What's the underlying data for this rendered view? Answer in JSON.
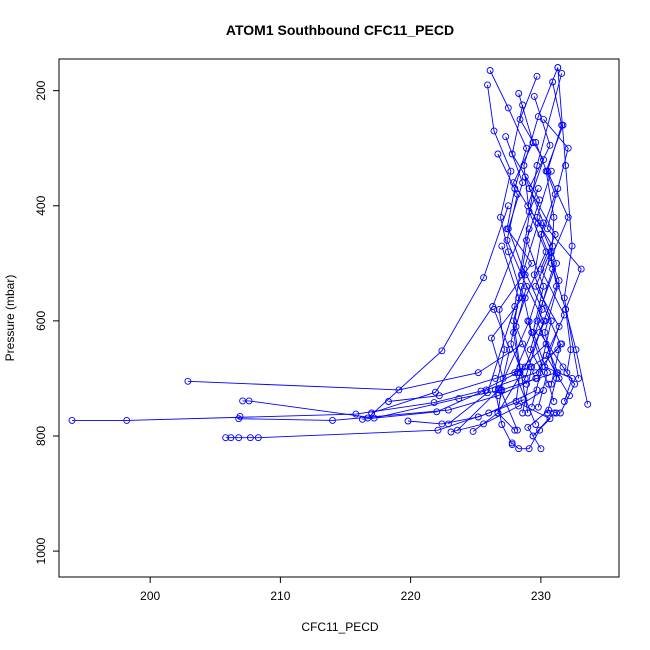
{
  "chart_data": {
    "type": "scatter",
    "title": "ATOM1 Southbound CFC11_PECD",
    "xlabel": "CFC11_PECD",
    "ylabel": "Pressure (mbar)",
    "xlim": [
      193.0,
      236.0
    ],
    "ylim": [
      1045,
      145
    ],
    "y_reversed": true,
    "x_ticks": [
      200,
      210,
      220,
      230
    ],
    "y_ticks": [
      200,
      400,
      600,
      800,
      1000
    ],
    "grid": false,
    "legend": "none",
    "color": "#0000ff",
    "marker": "open-circle",
    "series": [
      {
        "x": [
          231.3,
          229.8,
          228.7,
          229.1,
          230.4,
          228.8,
          227.9,
          228.4,
          228.1,
          230.7,
          229.4,
          231.0
        ],
        "y": [
          160,
          245,
          330,
          410,
          480,
          560,
          620,
          690,
          740,
          770,
          800,
          760
        ]
      },
      {
        "x": [
          226.1,
          227.5,
          228.9,
          228.0,
          227.4,
          229.3,
          226.8,
          227.2,
          226.5,
          227.0,
          227.8
        ],
        "y": [
          165,
          230,
          300,
          370,
          440,
          500,
          580,
          650,
          720,
          780,
          815
        ]
      },
      {
        "x": [
          229.7,
          228.4,
          230.2,
          229.0,
          230.9,
          229.6,
          231.4,
          230.3,
          232.4,
          231.8
        ],
        "y": [
          175,
          250,
          320,
          400,
          470,
          540,
          610,
          680,
          700,
          740
        ]
      },
      {
        "x": [
          225.9,
          226.4,
          227.7,
          226.9,
          227.5,
          228.6,
          226.2,
          227.1,
          226.7,
          228.0
        ],
        "y": [
          190,
          270,
          340,
          420,
          480,
          560,
          630,
          700,
          760,
          790
        ]
      },
      {
        "x": [
          230.9,
          231.6,
          230.5,
          232.1,
          230.8,
          231.2,
          229.9,
          231.7,
          232.6,
          231.5
        ],
        "y": [
          185,
          260,
          340,
          420,
          490,
          540,
          620,
          680,
          710,
          760
        ]
      },
      {
        "x": [
          228.3,
          229.4,
          227.9,
          229.8,
          228.7,
          230.1,
          229.2,
          230.6,
          231.0
        ],
        "y": [
          205,
          290,
          360,
          430,
          510,
          580,
          650,
          710,
          740
        ]
      },
      {
        "x": [
          229.5,
          230.7,
          229.1,
          231.1,
          230.0,
          231.8,
          230.4,
          231.4,
          232.2
        ],
        "y": [
          210,
          295,
          370,
          450,
          510,
          590,
          660,
          700,
          730
        ]
      },
      {
        "x": [
          230.2,
          232.1,
          231.3,
          230.5,
          233.1,
          231.9,
          232.7,
          233.6
        ],
        "y": [
          250,
          300,
          370,
          440,
          510,
          580,
          650,
          745
        ]
      },
      {
        "x": [
          228.6,
          227.8,
          229.9,
          228.9,
          230.2,
          229.4,
          230.5,
          229.8
        ],
        "y": [
          225,
          310,
          390,
          460,
          540,
          620,
          690,
          750
        ]
      },
      {
        "x": [
          231.7,
          230.4,
          231.0,
          230.8,
          231.9,
          232.3,
          232.0
        ],
        "y": [
          260,
          340,
          420,
          500,
          580,
          650,
          690
        ]
      },
      {
        "x": [
          227.3,
          228.6,
          227.5,
          228.8,
          227.9,
          228.4,
          229.0
        ],
        "y": [
          280,
          360,
          440,
          520,
          600,
          680,
          760
        ]
      },
      {
        "x": [
          226.7,
          228.2,
          227.4,
          228.9,
          228.1,
          229.3,
          228.6
        ],
        "y": [
          310,
          380,
          460,
          540,
          610,
          680,
          760
        ]
      },
      {
        "x": [
          229.6,
          231.1,
          230.0,
          231.4,
          230.3,
          231.2
        ],
        "y": [
          290,
          380,
          450,
          530,
          620,
          700
        ]
      },
      {
        "x": [
          230.8,
          229.7,
          231.2,
          230.1,
          231.5,
          230.8
        ],
        "y": [
          340,
          420,
          500,
          570,
          640,
          710
        ]
      },
      {
        "x": [
          228.8,
          230.2,
          229.5,
          230.8,
          229.9
        ],
        "y": [
          350,
          430,
          520,
          600,
          690
        ]
      },
      {
        "x": [
          231.3,
          231.9,
          232.4,
          231.8,
          232.9
        ],
        "y": [
          160,
          330,
          470,
          560,
          700
        ]
      },
      {
        "x": [
          229.1,
          228.5,
          230.2,
          228.8
        ],
        "y": [
          440,
          520,
          600,
          700
        ]
      },
      {
        "x": [
          227.0,
          228.3,
          227.7,
          228.9
        ],
        "y": [
          470,
          560,
          640,
          710
        ]
      },
      {
        "x": [
          230.9,
          229.7,
          231.3,
          230.5
        ],
        "y": [
          510,
          600,
          690,
          760
        ]
      },
      {
        "x": [
          228.5,
          229.3,
          228.0,
          229.6
        ],
        "y": [
          540,
          620,
          690,
          780
        ]
      },
      {
        "x": [
          226.4,
          227.6,
          226.9,
          228.2
        ],
        "y": [
          580,
          650,
          720,
          790
        ]
      },
      {
        "x": [
          229.0,
          230.1,
          229.3
        ],
        "y": [
          600,
          680,
          750
        ]
      },
      {
        "x": [
          202.9,
          219.1,
          225.2,
          228.6
        ],
        "y": [
          705,
          720,
          690,
          640
        ]
      },
      {
        "x": [
          194.0,
          198.2,
          215.8,
          221.8,
          225.4,
          228.2,
          230.4
        ],
        "y": [
          773,
          773,
          762,
          742,
          722,
          690,
          640
        ]
      },
      {
        "x": [
          205.8,
          206.2,
          206.8,
          207.7,
          208.3,
          222.1,
          226.0,
          229.7
        ],
        "y": [
          803,
          803,
          803,
          803,
          803,
          790,
          760,
          720
        ]
      },
      {
        "x": [
          207.1,
          207.6,
          217.2,
          223.7,
          227.0,
          229.7,
          231.2
        ],
        "y": [
          739,
          739,
          769,
          735,
          720,
          700,
          690
        ]
      },
      {
        "x": [
          206.9,
          206.8,
          214.0,
          222.9,
          226.7,
          229.6
        ],
        "y": [
          766,
          770,
          773,
          755,
          730,
          700
        ]
      },
      {
        "x": [
          218.3,
          222.2,
          226.5,
          229.2,
          231.3
        ],
        "y": [
          740,
          730,
          700,
          680,
          650
        ]
      },
      {
        "x": [
          216.3,
          222.0,
          225.8,
          229.6,
          231.6
        ],
        "y": [
          771,
          758,
          720,
          690,
          640
        ]
      },
      {
        "x": [
          219.8,
          222.4,
          225.2,
          228.7
        ],
        "y": [
          774,
          779,
          767,
          737
        ]
      },
      {
        "x": [
          217.0,
          221.9,
          226.3,
          229.8
        ],
        "y": [
          760,
          724,
          575,
          370
        ]
      },
      {
        "x": [
          222.9,
          225.9,
          228.0,
          229.7,
          231.6
        ],
        "y": [
          779,
          725,
          575,
          330,
          170
        ]
      },
      {
        "x": [
          216.7,
          222.4,
          225.6,
          227.5
        ],
        "y": [
          769,
          652,
          525,
          400
        ]
      },
      {
        "x": [
          223.6,
          226.8,
          229.1,
          230.8
        ],
        "y": [
          790,
          719,
          601,
          481
        ]
      },
      {
        "x": [
          224.8,
          226.7,
          228.8,
          230.3
        ],
        "y": [
          792,
          760,
          680,
          600
        ]
      },
      {
        "x": [
          223.1,
          225.6,
          228.3,
          230.2
        ],
        "y": [
          793,
          779,
          748,
          721
        ]
      },
      {
        "x": [
          227.8,
          228.3,
          229.1,
          229.9
        ],
        "y": [
          812,
          822,
          822,
          790
        ]
      },
      {
        "x": [
          230.0,
          229.0,
          230.6,
          231.2
        ],
        "y": [
          822,
          785,
          755,
          760
        ]
      }
    ]
  }
}
